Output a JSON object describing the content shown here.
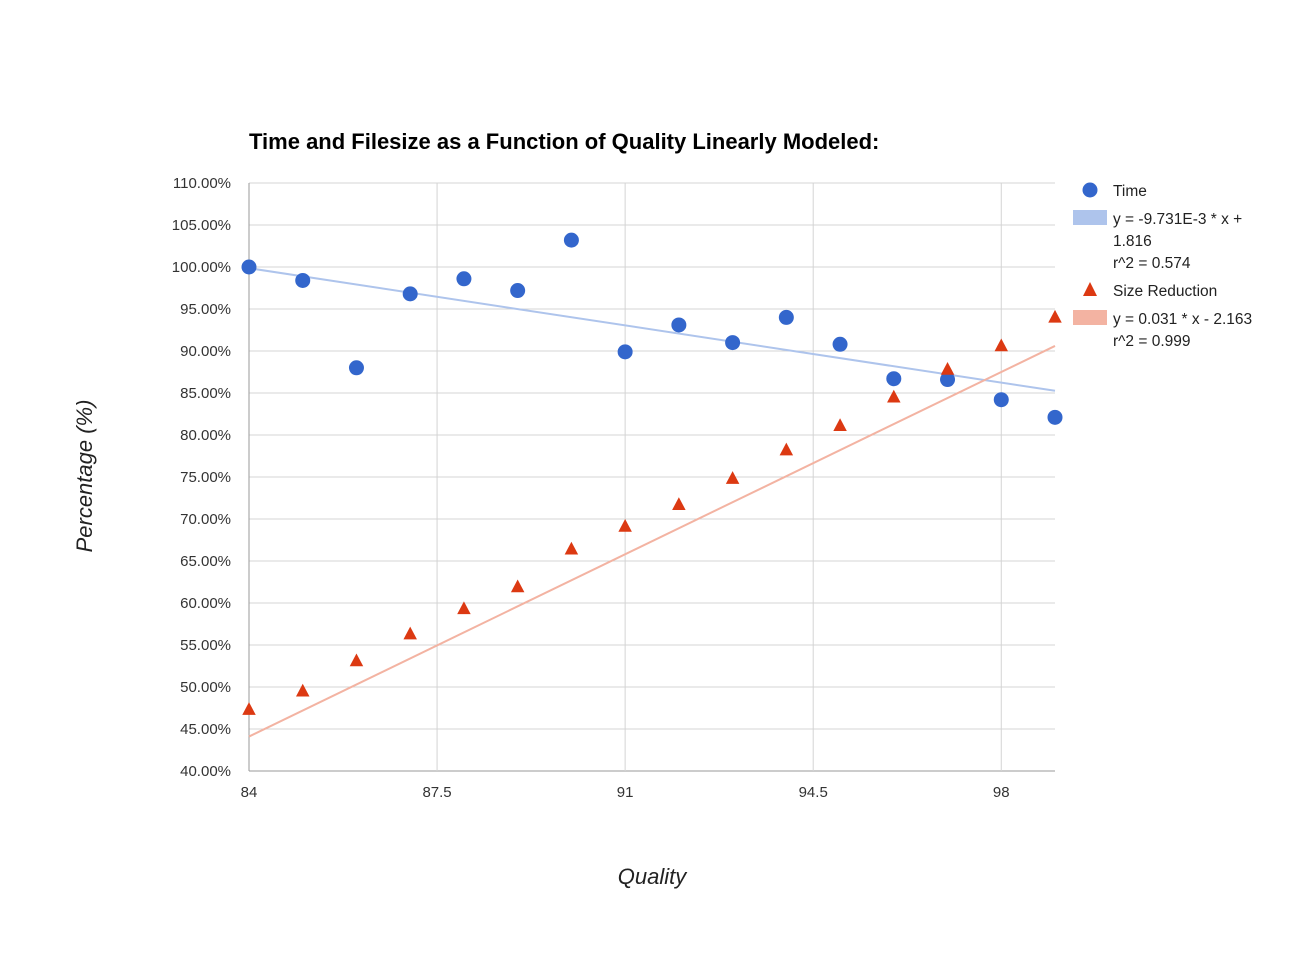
{
  "chart_data": {
    "type": "scatter",
    "title": "Time and Filesize as a Function of Quality Linearly Modeled:",
    "xlabel": "Quality",
    "ylabel": "Percentage (%)",
    "xlim": [
      84,
      99
    ],
    "ylim": [
      0.4,
      1.1
    ],
    "x_ticks": [
      84,
      87.5,
      91,
      94.5,
      98
    ],
    "x_tick_labels": [
      "84",
      "87.5",
      "91",
      "94.5",
      "98"
    ],
    "y_ticks": [
      0.4,
      0.45,
      0.5,
      0.55,
      0.6,
      0.65,
      0.7,
      0.75,
      0.8,
      0.85,
      0.9,
      0.95,
      1.0,
      1.05,
      1.1
    ],
    "y_tick_labels": [
      "40.00%",
      "45.00%",
      "50.00%",
      "55.00%",
      "60.00%",
      "65.00%",
      "70.00%",
      "75.00%",
      "80.00%",
      "85.00%",
      "90.00%",
      "95.00%",
      "100.00%",
      "105.00%",
      "110.00%"
    ],
    "grid": true,
    "legend_position": "right",
    "series": [
      {
        "name": "Time",
        "marker": "circle",
        "color": "#3366cc",
        "trendline_color": "#aec4ec",
        "x": [
          84,
          85,
          86,
          87,
          88,
          89,
          90,
          91,
          92,
          93,
          94,
          95,
          96,
          97,
          98,
          99
        ],
        "y": [
          1.0,
          0.984,
          0.88,
          0.968,
          0.986,
          0.972,
          1.032,
          0.899,
          0.931,
          0.91,
          0.94,
          0.908,
          0.867,
          0.866,
          0.842,
          0.821
        ],
        "trendline": {
          "slope": -0.009731,
          "intercept": 1.816,
          "label": "y = -9.731E-3 * x + 1.816",
          "r2_label": "r^2 = 0.574"
        }
      },
      {
        "name": "Size Reduction",
        "marker": "triangle",
        "color": "#dc3912",
        "trendline_color": "#f3b3a2",
        "x": [
          84,
          85,
          86,
          87,
          88,
          89,
          90,
          91,
          92,
          93,
          94,
          95,
          96,
          97,
          98,
          99
        ],
        "y": [
          0.473,
          0.495,
          0.531,
          0.563,
          0.593,
          0.619,
          0.664,
          0.691,
          0.717,
          0.748,
          0.782,
          0.811,
          0.845,
          0.878,
          0.906,
          0.94
        ],
        "trendline": {
          "slope": 0.031,
          "intercept": -2.163,
          "label": "y = 0.031 * x - 2.163",
          "r2_label": "r^2 = 0.999"
        }
      }
    ]
  },
  "legend": {
    "time_label": "Time",
    "time_trend_line1": "y = -9.731E-3 * x +",
    "time_trend_line2": "1.816",
    "time_trend_r2": "r^2 = 0.574",
    "size_label": "Size Reduction",
    "size_trend_line1": "y = 0.031 * x - 2.163",
    "size_trend_r2": "r^2 = 0.999"
  }
}
